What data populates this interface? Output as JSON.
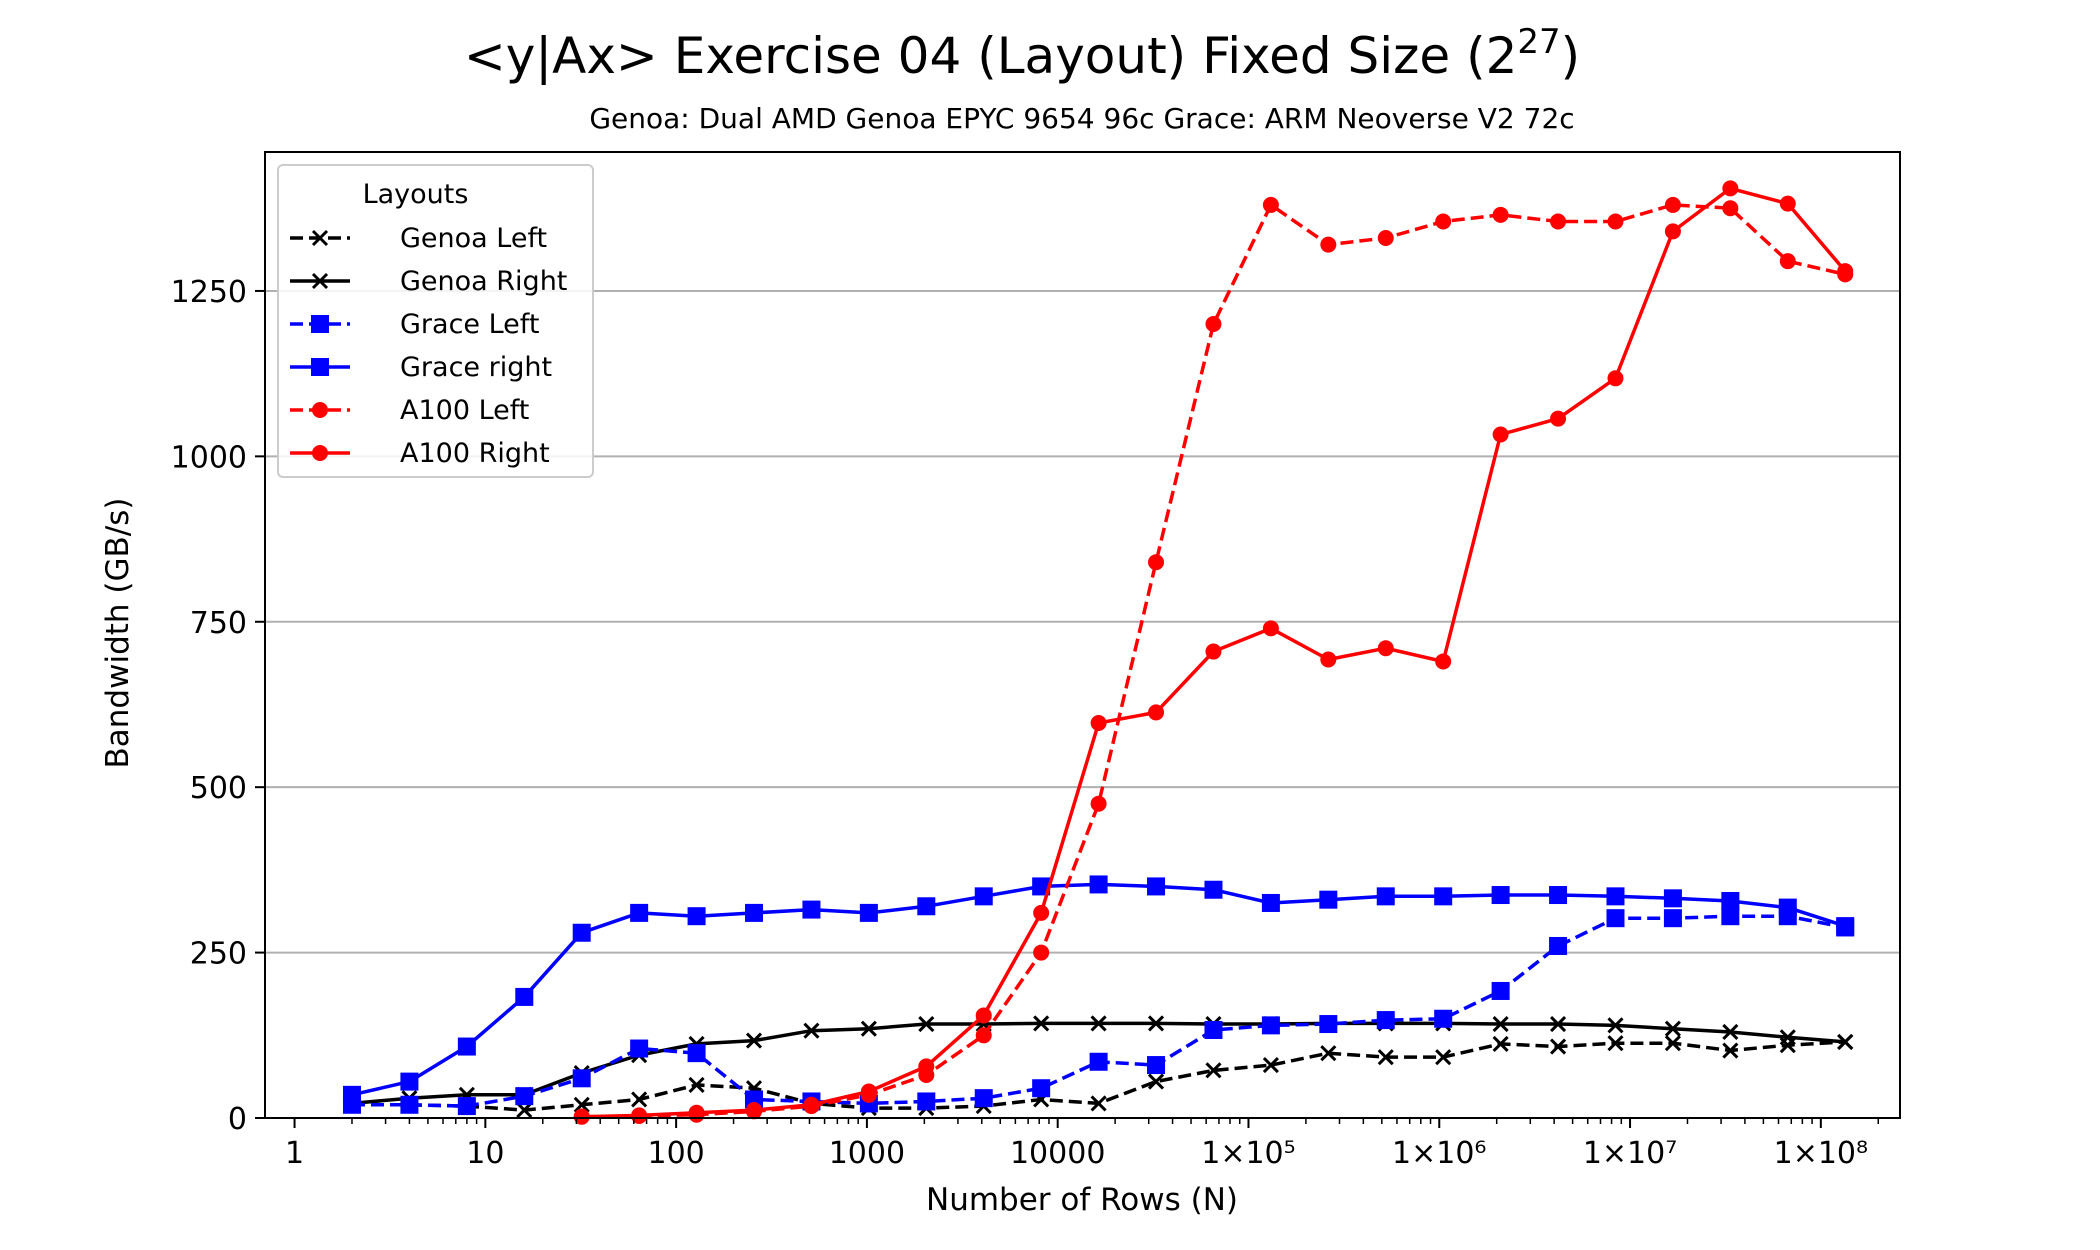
{
  "chart_data": {
    "type": "line",
    "title": "<y|Ax> Exercise 04 (Layout) Fixed Size",
    "title_base": "2",
    "title_exponent": "27",
    "subtitle": "Genoa: Dual AMD Genoa EPYC 9654 96c   Grace: ARM Neoverse V2 72c",
    "xlabel": "Number of Rows (N)",
    "ylabel": "Bandwidth (GB/s)",
    "x_scale": "log",
    "xlim": [
      0.7,
      260000000
    ],
    "ylim": [
      0,
      1460
    ],
    "grid": "y-major",
    "legend_title": "Layouts",
    "legend_position": "top-left",
    "x_ticks": [
      {
        "value": 1,
        "label": "1"
      },
      {
        "value": 10,
        "label": "10"
      },
      {
        "value": 100,
        "label": "100"
      },
      {
        "value": 1000,
        "label": "1000"
      },
      {
        "value": 10000,
        "label": "10000"
      },
      {
        "value": 100000,
        "label": "1×10⁵"
      },
      {
        "value": 1000000,
        "label": "1×10⁶"
      },
      {
        "value": 10000000,
        "label": "1×10⁷"
      },
      {
        "value": 100000000,
        "label": "1×10⁸"
      }
    ],
    "y_ticks": [
      {
        "value": 0,
        "label": "0"
      },
      {
        "value": 250,
        "label": "250"
      },
      {
        "value": 500,
        "label": "500"
      },
      {
        "value": 750,
        "label": "750"
      },
      {
        "value": 1000,
        "label": "1000"
      },
      {
        "value": 1250,
        "label": "1250"
      }
    ],
    "x": [
      2,
      4,
      8,
      16,
      32,
      64,
      128,
      256,
      512,
      1024,
      2048,
      4096,
      8192,
      16384,
      32768,
      65536,
      131072,
      262144,
      524288,
      1048576,
      2097152,
      4194304,
      8388608,
      16777216,
      33554432,
      67108864,
      134217728
    ],
    "series": [
      {
        "name": "Genoa Left",
        "color": "#000000",
        "dash": "dashed",
        "marker": "x",
        "values": [
          20,
          20,
          18,
          12,
          20,
          28,
          50,
          45,
          22,
          15,
          15,
          18,
          28,
          22,
          55,
          72,
          80,
          98,
          92,
          92,
          112,
          108,
          113,
          113,
          102,
          110,
          115
        ]
      },
      {
        "name": "Genoa Right",
        "color": "#000000",
        "dash": "solid",
        "marker": "x",
        "values": [
          22,
          30,
          35,
          35,
          68,
          95,
          112,
          117,
          132,
          135,
          142,
          142,
          143,
          143,
          143,
          142,
          142,
          143,
          143,
          143,
          142,
          142,
          140,
          135,
          130,
          122,
          115
        ]
      },
      {
        "name": "Grace Left",
        "color": "#0000ff",
        "dash": "dashed",
        "marker": "square",
        "values": [
          20,
          20,
          18,
          33,
          60,
          105,
          98,
          28,
          25,
          22,
          25,
          30,
          45,
          85,
          80,
          133,
          140,
          142,
          148,
          150,
          192,
          260,
          302,
          302,
          305,
          305,
          288
        ]
      },
      {
        "name": "Grace right",
        "color": "#0000ff",
        "dash": "solid",
        "marker": "square",
        "values": [
          35,
          55,
          108,
          183,
          280,
          310,
          305,
          310,
          315,
          310,
          320,
          335,
          350,
          353,
          350,
          345,
          325,
          330,
          335,
          335,
          337,
          337,
          335,
          332,
          328,
          318,
          290
        ]
      },
      {
        "name": "A100 Left",
        "color": "#ff0000",
        "dash": "dashed",
        "marker": "circle",
        "values": [
          null,
          null,
          null,
          null,
          2,
          3,
          5,
          10,
          18,
          35,
          65,
          125,
          250,
          475,
          840,
          1200,
          1380,
          1320,
          1330,
          1355,
          1365,
          1355,
          1355,
          1380,
          1375,
          1295,
          1275
        ]
      },
      {
        "name": "A100 Right",
        "color": "#ff0000",
        "dash": "solid",
        "marker": "circle",
        "values": [
          null,
          null,
          null,
          null,
          2,
          4,
          8,
          12,
          20,
          40,
          78,
          155,
          310,
          597,
          613,
          705,
          740,
          693,
          710,
          690,
          1033,
          1057,
          1118,
          1340,
          1405,
          1382,
          1280
        ]
      }
    ]
  }
}
